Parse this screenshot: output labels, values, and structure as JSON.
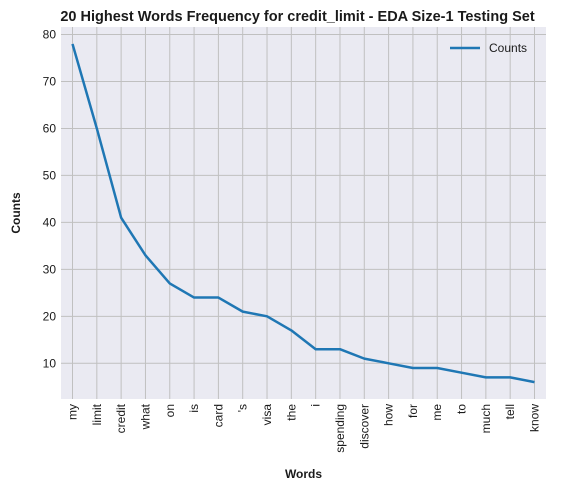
{
  "chart_data": {
    "type": "line",
    "title": "20 Highest Words Frequency for credit_limit - EDA Size-1 Testing Set",
    "xlabel": "Words",
    "ylabel": "Counts",
    "categories": [
      "my",
      "limit",
      "credit",
      "what",
      "on",
      "is",
      "card",
      "'s",
      "visa",
      "the",
      "i",
      "spending",
      "discover",
      "how",
      "for",
      "me",
      "to",
      "much",
      "tell",
      "know"
    ],
    "series": [
      {
        "name": "Counts",
        "values": [
          78,
          60,
          41,
          33,
          27,
          24,
          24,
          21,
          20,
          17,
          13,
          13,
          11,
          10,
          9,
          9,
          8,
          7,
          7,
          6
        ],
        "color": "#1f77b4"
      }
    ],
    "yticks": [
      10,
      20,
      30,
      40,
      50,
      60,
      70,
      80
    ],
    "ylim": [
      2.4,
      81.6
    ],
    "grid": true,
    "legend_position": "top-right",
    "background_color": "#eaeaf2",
    "grid_color": "#c0c0c0"
  }
}
